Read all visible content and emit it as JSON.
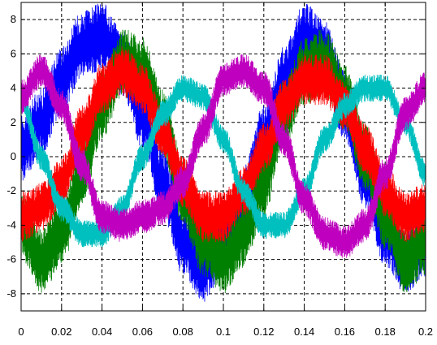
{
  "chart_data": {
    "type": "line",
    "title": "",
    "xlabel": "",
    "ylabel": "",
    "xlim": [
      0,
      0.2
    ],
    "ylim": [
      -9,
      9
    ],
    "grid": true,
    "grid_style": "dashed",
    "x_tick_labels": [
      "0",
      "0.02",
      "0.04",
      "0.06",
      "0.08",
      "0.1",
      "0.12",
      "0.14",
      "0.16",
      "0.18",
      "0.2"
    ],
    "x_ticks": [
      0,
      0.02,
      0.04,
      0.06,
      0.08,
      0.1,
      0.12,
      0.14,
      0.16,
      0.18,
      0.2
    ],
    "y_tick_labels": [
      "-8",
      "-6",
      "-4",
      "-2",
      "0",
      "2",
      "4",
      "6",
      "8"
    ],
    "y_ticks": [
      -8,
      -6,
      -4,
      -2,
      0,
      2,
      4,
      6,
      8
    ],
    "series": [
      {
        "color": "#0000ff",
        "x": [
          0,
          0.01,
          0.02,
          0.03,
          0.04,
          0.05,
          0.06,
          0.07,
          0.08,
          0.09,
          0.1,
          0.11,
          0.12,
          0.13,
          0.14,
          0.15,
          0.16,
          0.17,
          0.18,
          0.19,
          0.2
        ],
        "y": [
          0.5,
          2.0,
          4.5,
          6.5,
          7.0,
          5.5,
          2.5,
          -1.5,
          -5.0,
          -6.5,
          -5.0,
          -2.5,
          1.0,
          4.5,
          7.0,
          6.0,
          3.0,
          -1.0,
          -4.5,
          -6.0,
          -5.0
        ],
        "ripple": 2.0
      },
      {
        "color": "#008000",
        "x": [
          0,
          0.01,
          0.02,
          0.03,
          0.04,
          0.05,
          0.06,
          0.07,
          0.08,
          0.09,
          0.1,
          0.11,
          0.12,
          0.13,
          0.14,
          0.15,
          0.16,
          0.17,
          0.18,
          0.19,
          0.2
        ],
        "y": [
          -4.0,
          -6.0,
          -4.5,
          -1.0,
          3.0,
          5.5,
          5.0,
          2.0,
          -2.0,
          -5.0,
          -6.0,
          -4.5,
          -1.5,
          2.5,
          5.0,
          5.5,
          3.5,
          0.0,
          -3.5,
          -6.0,
          -5.0
        ],
        "ripple": 2.0
      },
      {
        "color": "#ff0000",
        "x": [
          0,
          0.01,
          0.02,
          0.03,
          0.04,
          0.05,
          0.06,
          0.07,
          0.08,
          0.09,
          0.1,
          0.11,
          0.12,
          0.13,
          0.14,
          0.15,
          0.16,
          0.17,
          0.18,
          0.19,
          0.2
        ],
        "y": [
          -3.5,
          -3.0,
          -1.5,
          1.5,
          4.0,
          5.0,
          4.0,
          1.5,
          -1.5,
          -3.5,
          -3.5,
          -2.0,
          0.5,
          3.0,
          4.5,
          4.5,
          3.0,
          0.5,
          -2.0,
          -3.5,
          -3.0
        ],
        "ripple": 1.5
      },
      {
        "color": "#00bfbf",
        "x": [
          0,
          0.01,
          0.02,
          0.03,
          0.04,
          0.05,
          0.06,
          0.07,
          0.08,
          0.09,
          0.1,
          0.11,
          0.12,
          0.13,
          0.14,
          0.15,
          0.16,
          0.17,
          0.18,
          0.19,
          0.2
        ],
        "y": [
          3.5,
          0.0,
          -3.0,
          -4.5,
          -4.5,
          -3.0,
          0.0,
          2.5,
          4.0,
          3.5,
          1.0,
          -2.0,
          -4.0,
          -4.0,
          -2.0,
          1.0,
          3.0,
          4.0,
          4.0,
          2.0,
          -1.0
        ],
        "ripple": 0.8
      },
      {
        "color": "#bf00bf",
        "x": [
          0,
          0.01,
          0.02,
          0.03,
          0.04,
          0.05,
          0.06,
          0.07,
          0.08,
          0.09,
          0.1,
          0.11,
          0.12,
          0.13,
          0.14,
          0.15,
          0.16,
          0.17,
          0.18,
          0.19,
          0.2
        ],
        "y": [
          3.5,
          5.0,
          3.0,
          -0.5,
          -3.5,
          -4.0,
          -3.5,
          -3.0,
          -1.5,
          1.5,
          4.5,
          5.0,
          4.0,
          1.0,
          -2.5,
          -4.5,
          -5.0,
          -4.0,
          -1.0,
          2.5,
          4.0
        ],
        "ripple": 1.0
      }
    ]
  }
}
